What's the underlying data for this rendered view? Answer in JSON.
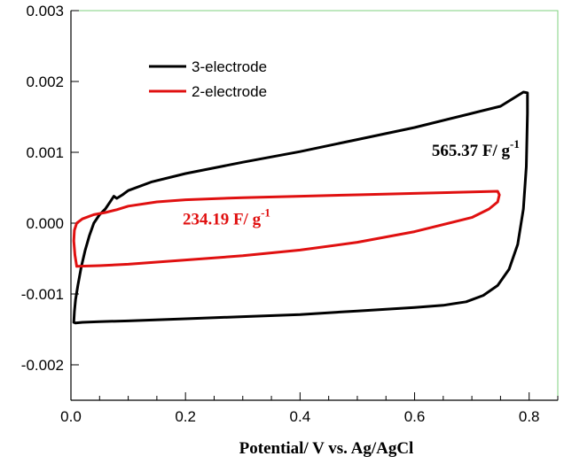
{
  "chart_data": {
    "type": "line",
    "title": "",
    "xlabel": "Potential/ V vs. Ag/AgCl",
    "ylabel": "",
    "xlim": [
      0.0,
      0.85
    ],
    "ylim": [
      -0.0025,
      0.003
    ],
    "x_ticks": [
      0.0,
      0.2,
      0.4,
      0.6,
      0.8
    ],
    "x_tick_labels": [
      "0.0",
      "0.2",
      "0.4",
      "0.6",
      "0.8"
    ],
    "y_ticks": [
      -0.002,
      -0.001,
      0.0,
      0.001,
      0.002,
      0.003
    ],
    "y_tick_labels": [
      "-0.002",
      "-0.001",
      "0.000",
      "0.001",
      "0.002",
      "0.003"
    ],
    "grid": false,
    "legend_position": "top-left",
    "series": [
      {
        "name": "3-electrode",
        "color": "#000000",
        "x": [
          0.005,
          0.006,
          0.008,
          0.012,
          0.018,
          0.025,
          0.032,
          0.04,
          0.05,
          0.06,
          0.07,
          0.075,
          0.08,
          0.09,
          0.1,
          0.14,
          0.2,
          0.3,
          0.4,
          0.5,
          0.6,
          0.7,
          0.75,
          0.79,
          0.797,
          0.797,
          0.795,
          0.79,
          0.78,
          0.765,
          0.745,
          0.72,
          0.69,
          0.65,
          0.6,
          0.5,
          0.4,
          0.3,
          0.2,
          0.1,
          0.05,
          0.02,
          0.008,
          0.005
        ],
        "y": [
          -0.0014,
          -0.00125,
          -0.00108,
          -0.00088,
          -0.00062,
          -0.00038,
          -0.00018,
          0.0,
          0.00012,
          0.0002,
          0.00032,
          0.00038,
          0.00035,
          0.0004,
          0.00046,
          0.00058,
          0.0007,
          0.00086,
          0.00101,
          0.00118,
          0.00135,
          0.00155,
          0.00165,
          0.00185,
          0.00184,
          0.00155,
          0.0008,
          0.0002,
          -0.0003,
          -0.00065,
          -0.00088,
          -0.00102,
          -0.00111,
          -0.00116,
          -0.00119,
          -0.00124,
          -0.00129,
          -0.00132,
          -0.00135,
          -0.00138,
          -0.00139,
          -0.0014,
          -0.00141,
          -0.0014
        ]
      },
      {
        "name": "2-electrode",
        "color": "#e01010",
        "x": [
          0.01,
          0.007,
          0.005,
          0.006,
          0.01,
          0.02,
          0.04,
          0.06,
          0.08,
          0.1,
          0.15,
          0.2,
          0.3,
          0.4,
          0.5,
          0.6,
          0.7,
          0.745,
          0.748,
          0.745,
          0.73,
          0.7,
          0.6,
          0.5,
          0.4,
          0.3,
          0.2,
          0.1,
          0.05,
          0.01
        ],
        "y": [
          -0.00061,
          -0.00045,
          -0.00025,
          -0.0001,
          0.0,
          6e-05,
          0.00012,
          0.00015,
          0.00019,
          0.00024,
          0.0003,
          0.00033,
          0.00036,
          0.00038,
          0.0004,
          0.00042,
          0.00044,
          0.00045,
          0.0004,
          0.0003,
          0.0002,
          8e-05,
          -0.00012,
          -0.00027,
          -0.00038,
          -0.00046,
          -0.00052,
          -0.00058,
          -0.0006,
          -0.00061
        ]
      }
    ],
    "annotations": [
      {
        "id": "black",
        "text": "565.37 F/ g",
        "sup": "-1",
        "x": 0.63,
        "y": 0.00095,
        "color": "#000000"
      },
      {
        "id": "red",
        "text": "234.19 F/ g",
        "sup": "-1",
        "x": 0.195,
        "y": -2e-05,
        "color": "#e01010"
      }
    ]
  }
}
